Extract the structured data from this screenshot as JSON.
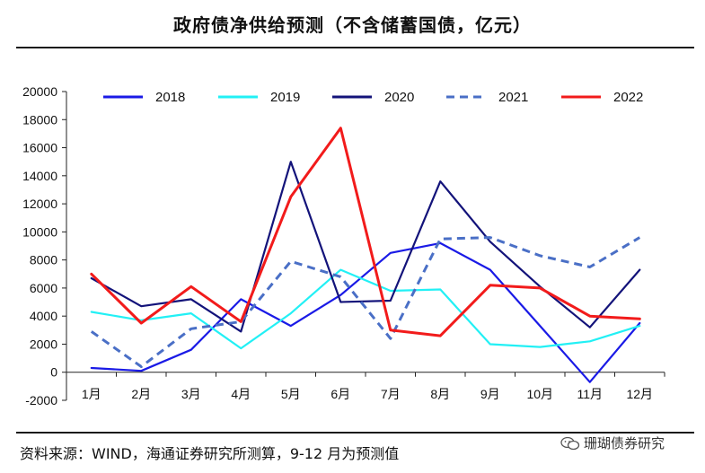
{
  "header": {
    "title": "政府债净供给预测（不含储蓄国债，亿元）"
  },
  "footer": {
    "source": "资料来源：WIND，海通证券研究所测算，9-12 月为预测值",
    "watermark": "珊瑚债券研究",
    "watermark_icon": "wechat-icon"
  },
  "chart_data": {
    "type": "line",
    "title": "政府债净供给预测（不含储蓄国债，亿元）",
    "xlabel": "",
    "ylabel": "",
    "categories": [
      "1月",
      "2月",
      "3月",
      "4月",
      "5月",
      "6月",
      "7月",
      "8月",
      "9月",
      "10月",
      "11月",
      "12月"
    ],
    "ylim": [
      -2000,
      20000
    ],
    "yticks": [
      -2000,
      0,
      2000,
      4000,
      6000,
      8000,
      10000,
      12000,
      14000,
      16000,
      18000,
      20000
    ],
    "grid": false,
    "legend_position": "top",
    "series": [
      {
        "name": "2018",
        "color": "#1a1ae6",
        "dash": false,
        "values": [
          300,
          100,
          1600,
          5200,
          3300,
          5500,
          8500,
          9200,
          7300,
          3300,
          -700,
          3500
        ]
      },
      {
        "name": "2019",
        "color": "#22f0f5",
        "dash": false,
        "values": [
          4300,
          3700,
          4200,
          1700,
          4200,
          7300,
          5800,
          5900,
          2000,
          1800,
          2200,
          3300
        ]
      },
      {
        "name": "2020",
        "color": "#13137a",
        "dash": false,
        "values": [
          6700,
          4700,
          5200,
          2900,
          15000,
          5000,
          5100,
          13600,
          9300,
          6100,
          3200,
          7300
        ]
      },
      {
        "name": "2021",
        "color": "#4a6fc6",
        "dash": true,
        "values": [
          2900,
          400,
          3100,
          3600,
          7900,
          6800,
          2400,
          9500,
          9600,
          8300,
          7500,
          9600
        ]
      },
      {
        "name": "2022",
        "color": "#f21b1b",
        "dash": false,
        "values": [
          7000,
          3500,
          6100,
          3600,
          12500,
          17400,
          3000,
          2600,
          6200,
          6000,
          4000,
          3800
        ]
      }
    ]
  }
}
